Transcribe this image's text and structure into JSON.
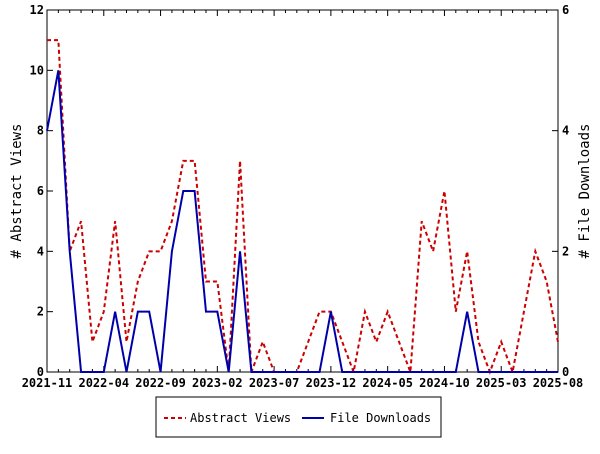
{
  "chart_data": {
    "type": "line",
    "x_tick_labels": [
      "2021-11",
      "2022-04",
      "2022-09",
      "2023-02",
      "2023-07",
      "2023-12",
      "2024-05",
      "2024-10",
      "2025-03",
      "2025-08"
    ],
    "x": [
      "2021-11",
      "2021-12",
      "2022-01",
      "2022-02",
      "2022-03",
      "2022-04",
      "2022-05",
      "2022-06",
      "2022-07",
      "2022-08",
      "2022-09",
      "2022-10",
      "2022-11",
      "2022-12",
      "2023-01",
      "2023-02",
      "2023-03",
      "2023-04",
      "2023-05",
      "2023-06",
      "2023-07",
      "2023-08",
      "2023-09",
      "2023-10",
      "2023-11",
      "2023-12",
      "2024-01",
      "2024-02",
      "2024-03",
      "2024-04",
      "2024-05",
      "2024-06",
      "2024-07",
      "2024-08",
      "2024-09",
      "2024-10",
      "2024-11",
      "2024-12",
      "2025-01",
      "2025-02",
      "2025-03",
      "2025-04",
      "2025-05",
      "2025-06",
      "2025-07",
      "2025-08"
    ],
    "y_left": {
      "label": "# Abstract Views",
      "range": [
        0,
        12
      ],
      "ticks": [
        "0",
        "2",
        "4",
        "6",
        "8",
        "10",
        "12"
      ]
    },
    "y_right": {
      "label": "# File Downloads",
      "range": [
        0,
        6
      ],
      "ticks": [
        "0",
        "2",
        "4",
        "6"
      ]
    },
    "series": [
      {
        "name": "Abstract Views",
        "axis": "left",
        "color": "#cc0000",
        "style": "dashed",
        "values": [
          11,
          11,
          4,
          5,
          1,
          2,
          5,
          1,
          3,
          4,
          4,
          5,
          7,
          7,
          3,
          3,
          0,
          7,
          0,
          1,
          0,
          0,
          0,
          1,
          2,
          2,
          1,
          0,
          2,
          1,
          2,
          1,
          0,
          5,
          4,
          6,
          2,
          4,
          1,
          0,
          1,
          0,
          2,
          4,
          3,
          1
        ]
      },
      {
        "name": "File Downloads",
        "axis": "right",
        "color": "#0000aa",
        "style": "solid",
        "values": [
          4,
          5,
          2,
          0,
          0,
          0,
          1,
          0,
          1,
          1,
          0,
          2,
          3,
          3,
          1,
          1,
          0,
          2,
          0,
          0,
          0,
          0,
          0,
          0,
          0,
          1,
          0,
          0,
          0,
          0,
          0,
          0,
          0,
          0,
          0,
          0,
          0,
          1,
          0,
          0,
          0,
          0,
          0,
          0,
          0,
          0
        ]
      }
    ],
    "grid": false,
    "legend": {
      "position": "bottom-center"
    }
  }
}
